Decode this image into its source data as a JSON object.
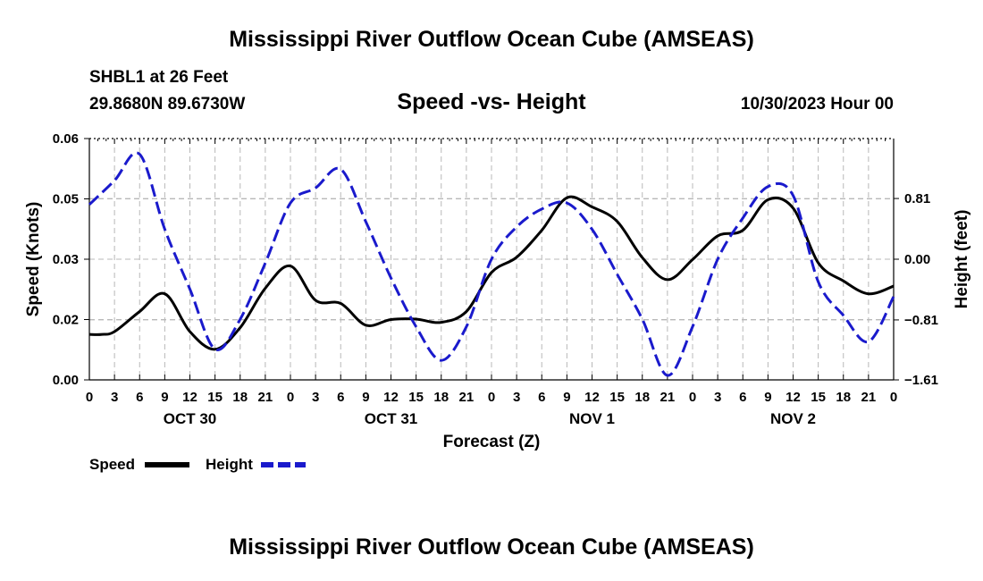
{
  "header": {
    "title": "Mississippi River Outflow Ocean Cube (AMSEAS)",
    "station": "SHBL1 at 26 Feet",
    "coords": "29.8680N  89.6730W",
    "subtitle": "Speed -vs- Height",
    "datehour": "10/30/2023 Hour 00"
  },
  "footer": {
    "title": "Mississippi River Outflow Ocean Cube (AMSEAS)"
  },
  "chart_data": {
    "type": "line",
    "title": "Speed -vs- Height",
    "xlabel": "Forecast (Z)",
    "ylabel": "Speed (Knots)",
    "y2label": "Height (feet)",
    "xlim": [
      0,
      96
    ],
    "ylim": [
      0,
      0.06
    ],
    "y2lim": [
      -1.61,
      1.61
    ],
    "x_ticks": [
      0,
      3,
      6,
      9,
      12,
      15,
      18,
      21,
      24,
      27,
      30,
      33,
      36,
      39,
      42,
      45,
      48,
      51,
      54,
      57,
      60,
      63,
      66,
      69,
      72,
      75,
      78,
      81,
      84,
      87,
      90,
      93,
      96
    ],
    "x_tick_labels": [
      "0",
      "3",
      "6",
      "9",
      "12",
      "15",
      "18",
      "21",
      "0",
      "3",
      "6",
      "9",
      "12",
      "15",
      "18",
      "21",
      "0",
      "3",
      "6",
      "9",
      "12",
      "15",
      "18",
      "21",
      "0",
      "3",
      "6",
      "9",
      "12",
      "15",
      "18",
      "21",
      "0"
    ],
    "day_ticks": [
      12,
      36,
      60,
      84
    ],
    "day_labels": [
      "OCT 30",
      "OCT 31",
      "NOV 1",
      "NOV 2"
    ],
    "y_ticks": [
      0,
      0.015,
      0.03,
      0.045,
      0.06
    ],
    "y_tick_labels": [
      "0.00",
      "0.02",
      "0.03",
      "0.05",
      "0.06"
    ],
    "y2_ticks": [
      -1.61,
      -0.81,
      0,
      0.81
    ],
    "y2_tick_labels": [
      "−1.61",
      "−0.81",
      "0.00",
      "0.81"
    ],
    "grid": true,
    "legend_position": "bottom-left",
    "series": [
      {
        "name": "Speed",
        "axis": "left",
        "color": "#000000",
        "dash": "solid",
        "x": [
          0,
          1.5,
          3,
          6,
          9,
          12,
          15,
          18,
          21,
          24,
          27,
          30,
          33,
          36,
          39,
          42,
          45,
          48,
          51,
          54,
          57,
          60,
          63,
          66,
          69,
          72,
          75,
          78,
          81,
          84,
          87,
          90,
          93,
          96
        ],
        "values": [
          0.0113,
          0.0113,
          0.012,
          0.017,
          0.0214,
          0.012,
          0.0076,
          0.013,
          0.0228,
          0.0283,
          0.0198,
          0.019,
          0.0136,
          0.015,
          0.0151,
          0.0143,
          0.017,
          0.0267,
          0.0305,
          0.0372,
          0.0453,
          0.043,
          0.0394,
          0.0304,
          0.0249,
          0.0299,
          0.0358,
          0.0372,
          0.0448,
          0.0427,
          0.0291,
          0.0246,
          0.0214,
          0.0233
        ]
      },
      {
        "name": "Height",
        "axis": "right",
        "color": "#1a1acc",
        "dash": "dashed",
        "x": [
          0,
          3,
          6,
          9,
          12,
          15,
          18,
          21,
          24,
          27,
          30,
          33,
          36,
          39,
          42,
          45,
          48,
          51,
          54,
          57,
          60,
          63,
          66,
          69,
          72,
          75,
          78,
          81,
          84,
          87,
          90,
          93,
          96
        ],
        "values": [
          0.73,
          1.05,
          1.4,
          0.4,
          -0.4,
          -1.2,
          -0.8,
          -0.05,
          0.75,
          0.95,
          1.2,
          0.5,
          -0.25,
          -0.9,
          -1.35,
          -0.9,
          0.0,
          0.43,
          0.67,
          0.75,
          0.4,
          -0.2,
          -0.8,
          -1.55,
          -0.9,
          0.0,
          0.55,
          0.97,
          0.85,
          -0.3,
          -0.75,
          -1.1,
          -0.5
        ]
      }
    ]
  }
}
